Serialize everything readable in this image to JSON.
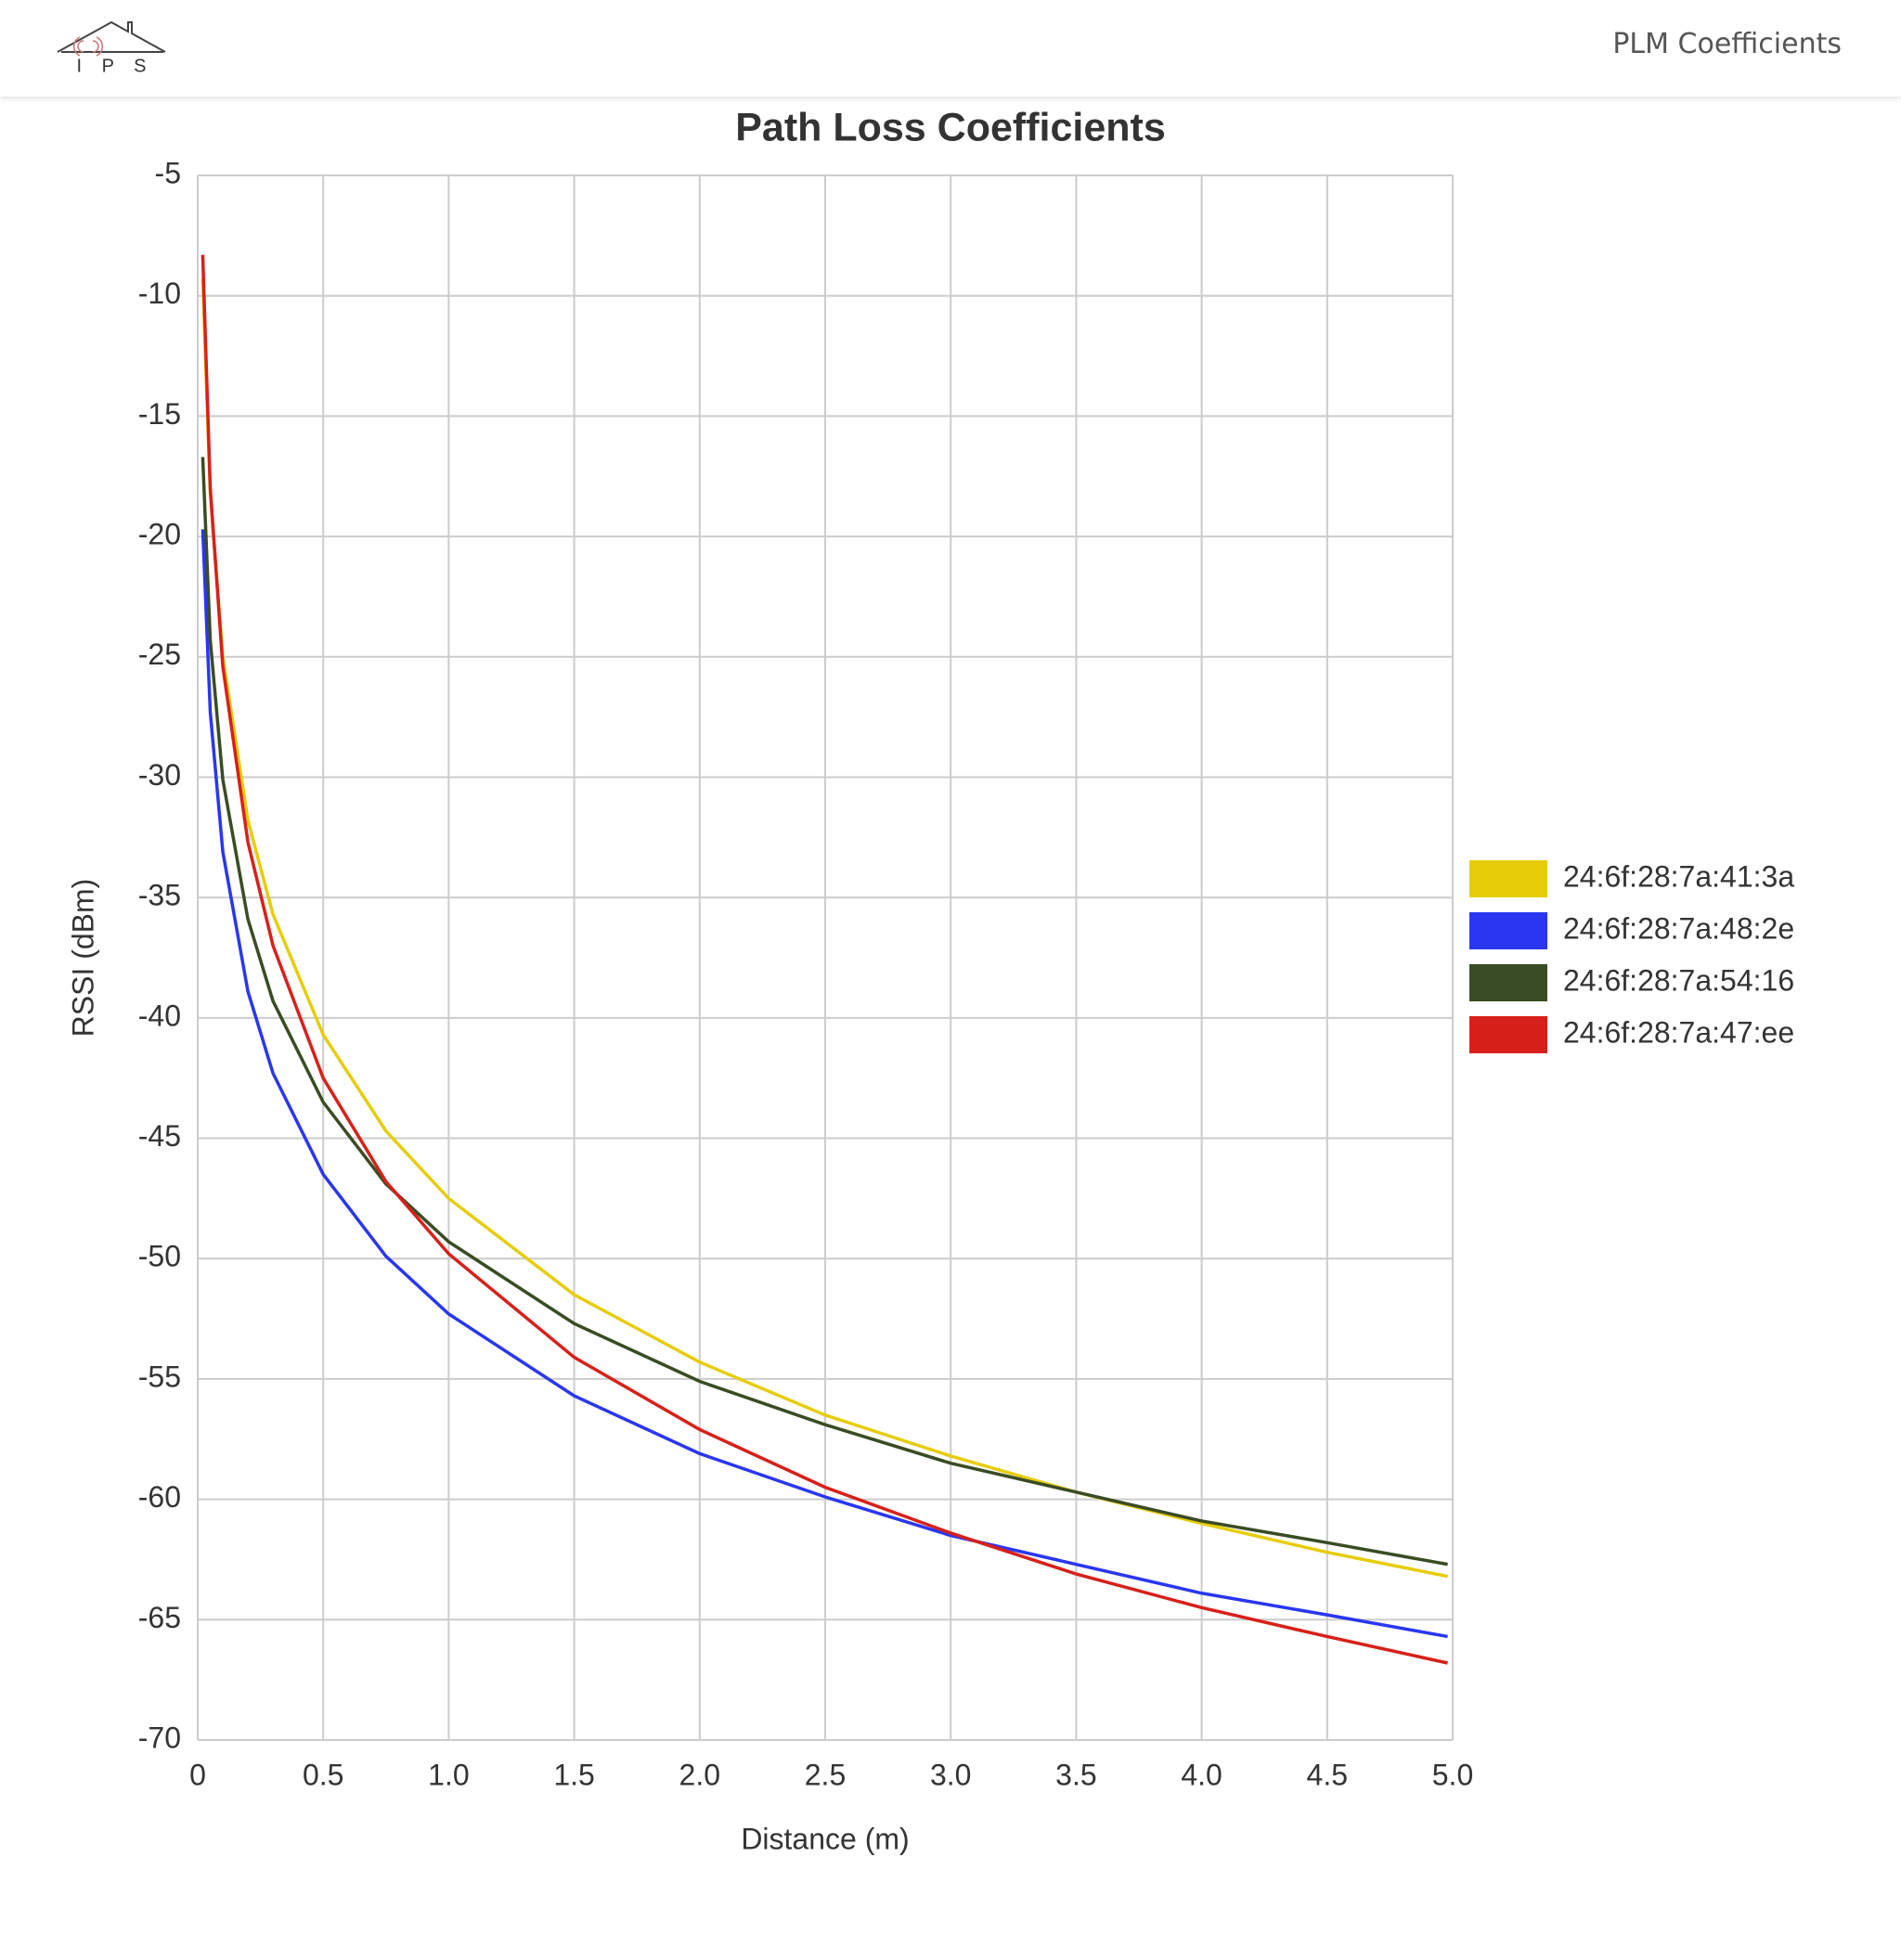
{
  "nav": {
    "logo_text": "I P S",
    "link": "PLM Coefficients"
  },
  "chart_data": {
    "type": "line",
    "title": "Path Loss Coefficients",
    "x_label": "Distance (m)",
    "y_label": "RSSI (dBm)",
    "x": [
      0.02,
      0.05,
      0.1,
      0.2,
      0.3,
      0.5,
      0.75,
      1.0,
      1.5,
      2.0,
      2.5,
      3.0,
      3.5,
      4.0,
      4.5,
      4.98
    ],
    "series": [
      {
        "name": "24:6f:28:7a:41:3a",
        "color": "#e6cd0a",
        "values": [
          -9.3,
          -18.2,
          -25.0,
          -31.8,
          -35.7,
          -40.7,
          -44.7,
          -47.5,
          -51.5,
          -54.3,
          -56.5,
          -58.2,
          -59.7,
          -61.0,
          -62.2,
          -63.2
        ]
      },
      {
        "name": "24:6f:28:7a:48:2e",
        "color": "#2a36f2",
        "values": [
          -19.7,
          -27.3,
          -33.1,
          -38.9,
          -42.3,
          -46.5,
          -49.9,
          -52.3,
          -55.7,
          -58.1,
          -59.9,
          -61.5,
          -62.7,
          -63.9,
          -64.8,
          -65.7
        ]
      },
      {
        "name": "24:6f:28:7a:54:16",
        "color": "#3a4c24",
        "values": [
          -16.7,
          -24.3,
          -30.1,
          -35.9,
          -39.3,
          -43.5,
          -46.9,
          -49.3,
          -52.7,
          -55.1,
          -56.9,
          -58.5,
          -59.7,
          -60.9,
          -61.8,
          -62.7
        ]
      },
      {
        "name": "24:6f:28:7a:47:ee",
        "color": "#d8201a",
        "values": [
          -8.3,
          -18.0,
          -25.4,
          -32.7,
          -37.0,
          -42.5,
          -46.8,
          -49.8,
          -54.1,
          -57.1,
          -59.5,
          -61.4,
          -63.1,
          -64.5,
          -65.7,
          -66.8
        ]
      }
    ],
    "xlim": [
      0,
      5
    ],
    "xticks": [
      0,
      0.5,
      {
        "value": 1,
        "label": "1.0"
      },
      1.5,
      {
        "value": 2,
        "label": "2.0"
      },
      2.5,
      {
        "value": 3,
        "label": "3.0"
      },
      3.5,
      {
        "value": 4,
        "label": "4.0"
      },
      4.5,
      {
        "value": 5,
        "label": "5.0"
      }
    ],
    "ylim": [
      -70,
      -5
    ],
    "yticks": [
      -5,
      -10,
      -15,
      -20,
      -25,
      -30,
      -35,
      -40,
      -45,
      -50,
      -55,
      -60,
      -65,
      -70
    ],
    "grid": true,
    "legend": "right"
  }
}
